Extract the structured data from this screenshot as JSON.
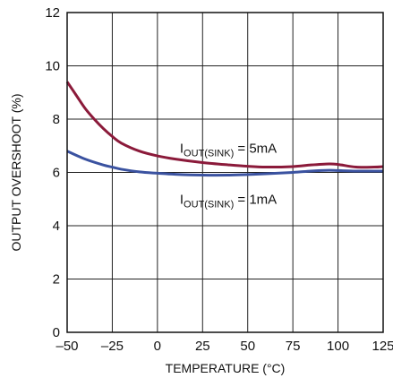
{
  "chart_data": {
    "type": "line",
    "title": "",
    "xlabel": "TEMPERATURE (°C)",
    "ylabel": "OUTPUT OVERSHOOT (%)",
    "xlim": [
      -50,
      125
    ],
    "ylim": [
      0,
      12
    ],
    "x_ticks": [
      -50,
      -25,
      0,
      25,
      50,
      75,
      100,
      125
    ],
    "x_tick_labels": [
      "–50",
      "–25",
      "0",
      "25",
      "50",
      "75",
      "100",
      "125"
    ],
    "y_ticks": [
      0,
      2,
      4,
      6,
      8,
      10,
      12
    ],
    "y_tick_labels": [
      "0",
      "2",
      "4",
      "6",
      "8",
      "10",
      "12"
    ],
    "grid": true,
    "legend": "none",
    "series": [
      {
        "name": "I_OUT(SINK) = 5mA",
        "color": "#8b1a3a",
        "x": [
          -50,
          -45,
          -40,
          -35,
          -30,
          -25,
          -20,
          -10,
          0,
          10,
          25,
          40,
          50,
          60,
          75,
          85,
          95,
          100,
          110,
          120,
          125
        ],
        "y": [
          9.4,
          8.9,
          8.4,
          8.0,
          7.65,
          7.35,
          7.1,
          6.8,
          6.62,
          6.5,
          6.37,
          6.28,
          6.23,
          6.2,
          6.22,
          6.28,
          6.32,
          6.3,
          6.2,
          6.2,
          6.22
        ]
      },
      {
        "name": "I_OUT(SINK) = 1mA",
        "color": "#3a52a0",
        "x": [
          -50,
          -40,
          -30,
          -25,
          -20,
          -10,
          0,
          10,
          25,
          40,
          50,
          60,
          75,
          85,
          95,
          100,
          110,
          120,
          125
        ],
        "y": [
          6.8,
          6.5,
          6.28,
          6.2,
          6.12,
          6.02,
          5.97,
          5.93,
          5.9,
          5.9,
          5.92,
          5.95,
          6.0,
          6.05,
          6.08,
          6.07,
          6.05,
          6.05,
          6.05
        ]
      }
    ],
    "annotations": [
      {
        "main": "I",
        "sub": "OUT(SINK)",
        "rest": " = 5mA",
        "at": [
          0,
          6.9
        ]
      },
      {
        "main": "I",
        "sub": "OUT(SINK)",
        "rest": " = 1mA",
        "at": [
          0,
          5.0
        ]
      }
    ]
  }
}
